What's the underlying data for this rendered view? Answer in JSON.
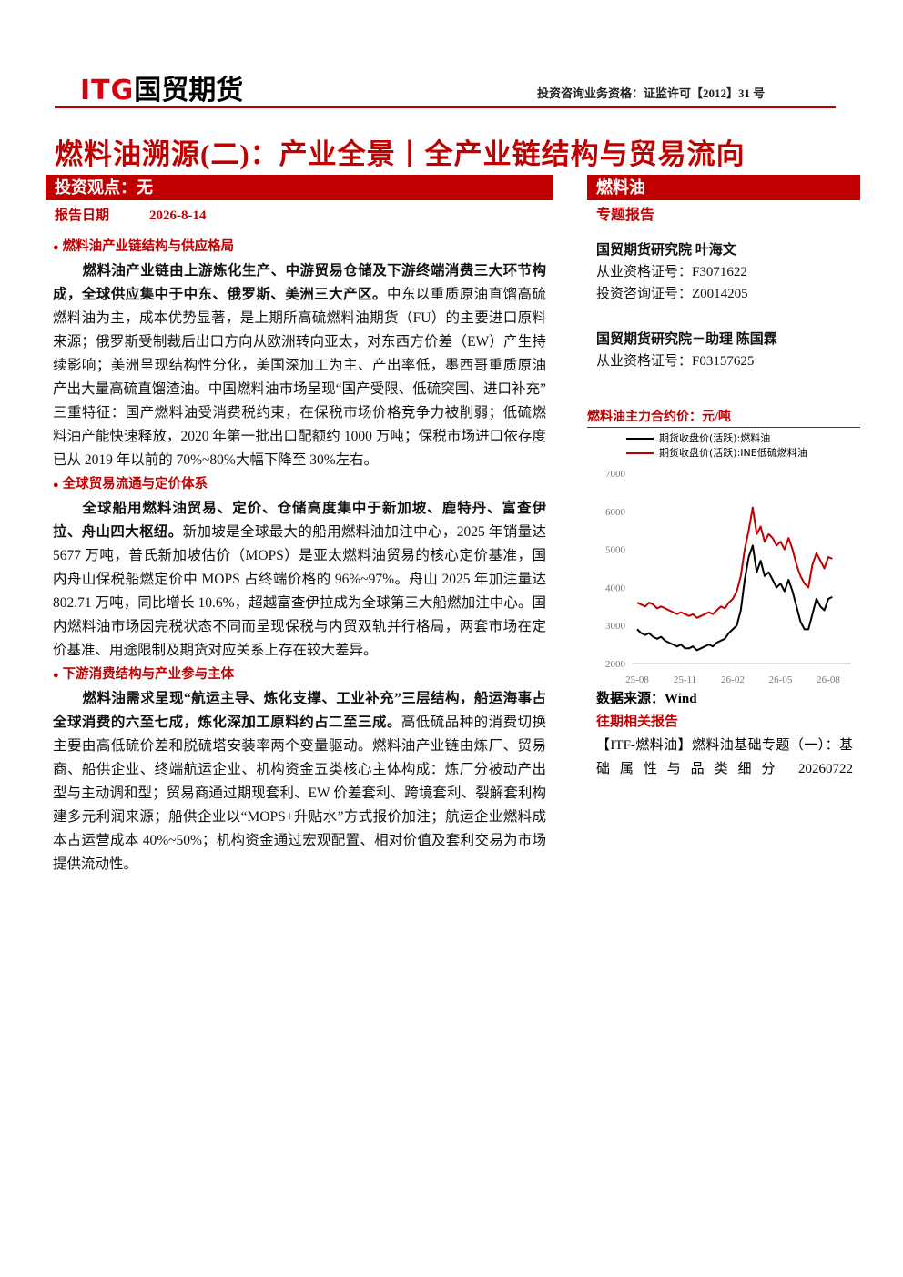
{
  "header": {
    "logo_mark": "ITG",
    "logo_name": "国贸期货",
    "qualification": "投资咨询业务资格：证监许可【2012】31 号"
  },
  "title": "燃料油溯源(二)：产业全景丨全产业链结构与贸易流向",
  "view": "投资观点：无",
  "date_label": "报告日期",
  "date": "2026-8-14",
  "sections": [
    {
      "heading": "燃料油产业链结构与供应格局",
      "lead": "燃料油产业链由上游炼化生产、中游贸易仓储及下游终端消费三大环节构成，全球供应集中于中东、俄罗斯、美洲三大产区。",
      "body": "中东以重质原油直馏高硫燃料油为主，成本优势显著，是上期所高硫燃料油期货（FU）的主要进口原料来源；俄罗斯受制裁后出口方向从欧洲转向亚太，对东西方价差（EW）产生持续影响；美洲呈现结构性分化，美国深加工为主、产出率低，墨西哥重质原油产出大量高硫直馏渣油。中国燃料油市场呈现“国产受限、低硫突围、进口补充”三重特征：国产燃料油受消费税约束，在保税市场价格竞争力被削弱；低硫燃料油产能快速释放，2020 年第一批出口配额约 1000 万吨；保税市场进口依存度已从 2019 年以前的 70%~80%大幅下降至 30%左右。"
    },
    {
      "heading": "全球贸易流通与定价体系",
      "lead": "全球船用燃料油贸易、定价、仓储高度集中于新加坡、鹿特丹、富查伊拉、舟山四大枢纽。",
      "body": "新加坡是全球最大的船用燃料油加注中心，2025 年销量达 5677 万吨，普氏新加坡估价（MOPS）是亚太燃料油贸易的核心定价基准，国内舟山保税船燃定价中 MOPS 占终端价格的 96%~97%。舟山 2025 年加注量达 802.71 万吨，同比增长 10.6%，超越富查伊拉成为全球第三大船燃加注中心。国内燃料油市场因完税状态不同而呈现保税与内贸双轨并行格局，两套市场在定价基准、用途限制及期货对应关系上存在较大差异。"
    },
    {
      "heading": "下游消费结构与产业参与主体",
      "lead": "燃料油需求呈现“航运主导、炼化支撑、工业补充”三层结构，船运海事占全球消费的六至七成，炼化深加工原料约占二至三成。",
      "body": "高低硫品种的消费切换主要由高低硫价差和脱硫塔安装率两个变量驱动。燃料油产业链由炼厂、贸易商、船供企业、终端航运企业、机构资金五类核心主体构成：炼厂分被动产出型与主动调和型；贸易商通过期现套利、EW 价差套利、跨境套利、裂解套利构建多元利润来源；船供企业以“MOPS+升贴水”方式报价加注；航运企业燃料成本占运营成本 40%~50%；机构资金通过宏观配置、相对价值及套利交易为市场提供流动性。"
    }
  ],
  "sidebar": {
    "category": "燃料油",
    "report_type": "专题报告",
    "analysts": [
      {
        "name": "国贸期货研究院 叶海文",
        "lines": [
          "从业资格证号：F3071622",
          "投资咨询证号：Z0014205"
        ]
      },
      {
        "name": "国贸期货研究院－助理 陈国霖",
        "lines": [
          "从业资格证号：F03157625"
        ]
      }
    ],
    "source": "数据来源：Wind",
    "related_title": "往期相关报告",
    "related": "【ITF-燃料油】燃料油基础专题（一）：基础属性与品类细分 20260722"
  },
  "chart_data": {
    "type": "line",
    "title": "燃料油主力合约价：元/吨",
    "categories": [
      "25-08",
      null,
      null,
      null,
      null,
      null,
      null,
      null,
      null,
      null,
      null,
      null,
      "25-11",
      null,
      null,
      null,
      null,
      null,
      null,
      null,
      null,
      null,
      null,
      null,
      "26-02",
      null,
      null,
      null,
      null,
      null,
      null,
      null,
      null,
      null,
      null,
      null,
      "26-05",
      null,
      null,
      null,
      null,
      null,
      null,
      null,
      null,
      null,
      null,
      null,
      "26-08",
      null
    ],
    "series": [
      {
        "name": "期货收盘价(活跃):燃料油",
        "color": "#000000",
        "values": [
          2900,
          2800,
          2750,
          2800,
          2700,
          2650,
          2700,
          2600,
          2550,
          2500,
          2450,
          2500,
          2400,
          2400,
          2450,
          2350,
          2400,
          2450,
          2500,
          2450,
          2550,
          2600,
          2650,
          2800,
          2900,
          3000,
          3400,
          4200,
          4800,
          5100,
          4400,
          4700,
          4300,
          4400,
          4200,
          4000,
          4100,
          3900,
          4200,
          3900,
          3500,
          3100,
          2900,
          2900,
          3300,
          3700,
          3500,
          3400,
          3700,
          3750
        ]
      },
      {
        "name": "期货收盘价(活跃):INE低硫燃料油",
        "color": "#c00000",
        "values": [
          3600,
          3550,
          3500,
          3600,
          3550,
          3450,
          3500,
          3450,
          3400,
          3350,
          3300,
          3350,
          3300,
          3250,
          3300,
          3200,
          3250,
          3300,
          3350,
          3300,
          3400,
          3500,
          3450,
          3600,
          3700,
          3900,
          4300,
          5000,
          5500,
          6100,
          5400,
          5600,
          5200,
          5400,
          5300,
          5100,
          5200,
          5000,
          5300,
          5000,
          4600,
          4300,
          4100,
          4000,
          4600,
          4900,
          4700,
          4500,
          4800,
          4750
        ]
      }
    ],
    "ylim": [
      2000,
      7000
    ],
    "yticks": [
      2000,
      3000,
      4000,
      5000,
      6000,
      7000
    ]
  }
}
